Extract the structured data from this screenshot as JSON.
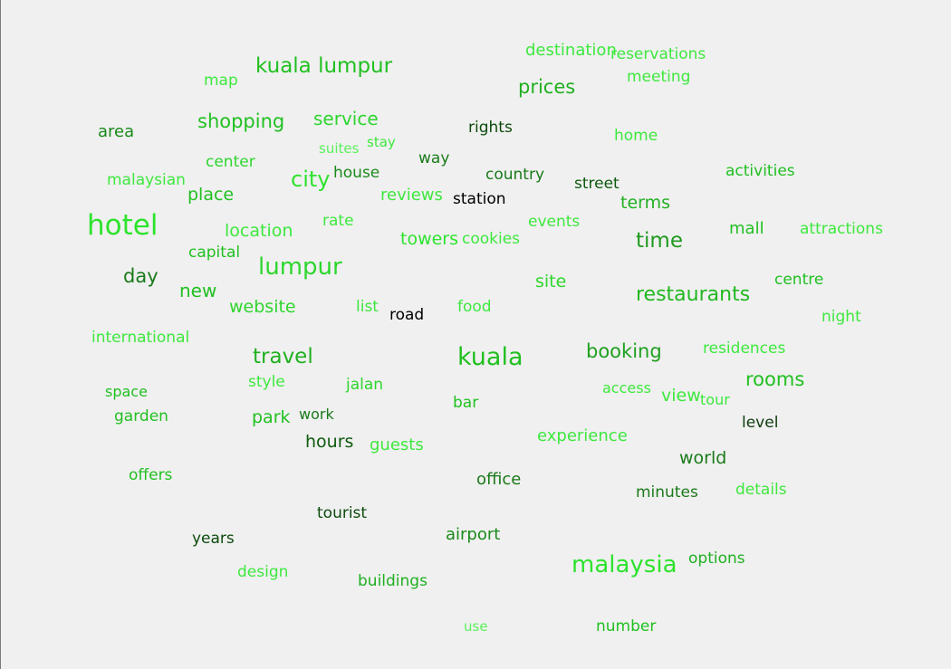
{
  "word_cloud": {
    "words": [
      {
        "text": "hotel",
        "color": "#2ee32e"
      },
      {
        "text": "kuala lumpur",
        "color": "#21c021"
      },
      {
        "text": "lumpur",
        "color": "#2ed62e"
      },
      {
        "text": "kuala",
        "color": "#21c021"
      },
      {
        "text": "malaysia",
        "color": "#2ee32e"
      },
      {
        "text": "restaurants",
        "color": "#21b821"
      },
      {
        "text": "travel",
        "color": "#21b021"
      },
      {
        "text": "city",
        "color": "#2ee32e"
      },
      {
        "text": "time",
        "color": "#1f9a1f"
      },
      {
        "text": "prices",
        "color": "#21b021"
      },
      {
        "text": "shopping",
        "color": "#21c021"
      },
      {
        "text": "rooms",
        "color": "#21c021"
      },
      {
        "text": "booking",
        "color": "#1fa01f"
      },
      {
        "text": "service",
        "color": "#2ed62e"
      },
      {
        "text": "location",
        "color": "#3ee83e"
      },
      {
        "text": "day",
        "color": "#1a7a1a"
      },
      {
        "text": "website",
        "color": "#2ed62e"
      },
      {
        "text": "towers",
        "color": "#2ee32e"
      },
      {
        "text": "place",
        "color": "#21c021"
      },
      {
        "text": "new",
        "color": "#21c021"
      },
      {
        "text": "terms",
        "color": "#21b021"
      },
      {
        "text": "reviews",
        "color": "#3ee83e"
      },
      {
        "text": "hours",
        "color": "#0d5a0d"
      },
      {
        "text": "guests",
        "color": "#3ee83e"
      },
      {
        "text": "view",
        "color": "#3ee83e"
      },
      {
        "text": "site",
        "color": "#2ed62e"
      },
      {
        "text": "park",
        "color": "#21c021"
      },
      {
        "text": "area",
        "color": "#1a8a1a"
      },
      {
        "text": "destination",
        "color": "#3ee83e"
      },
      {
        "text": "reservations",
        "color": "#3ee83e"
      },
      {
        "text": "meeting",
        "color": "#3ee83e"
      },
      {
        "text": "map",
        "color": "#3ee83e"
      },
      {
        "text": "rights",
        "color": "#0d4a0d"
      },
      {
        "text": "home",
        "color": "#3ee83e"
      },
      {
        "text": "suites",
        "color": "#5cf05c"
      },
      {
        "text": "stay",
        "color": "#3ee83e"
      },
      {
        "text": "center",
        "color": "#2ed62e"
      },
      {
        "text": "house",
        "color": "#1a8a1a"
      },
      {
        "text": "way",
        "color": "#1a7a1a"
      },
      {
        "text": "country",
        "color": "#1a7a1a"
      },
      {
        "text": "street",
        "color": "#0d5a0d"
      },
      {
        "text": "activities",
        "color": "#21c021"
      },
      {
        "text": "malaysian",
        "color": "#3ee83e"
      },
      {
        "text": "station",
        "color": "#000000"
      },
      {
        "text": "rate",
        "color": "#3ee83e"
      },
      {
        "text": "events",
        "color": "#3ee83e"
      },
      {
        "text": "mall",
        "color": "#21c021"
      },
      {
        "text": "attractions",
        "color": "#3ee83e"
      },
      {
        "text": "capital",
        "color": "#21c021"
      },
      {
        "text": "cookies",
        "color": "#3ee83e"
      },
      {
        "text": "centre",
        "color": "#21c021"
      },
      {
        "text": "list",
        "color": "#3ee83e"
      },
      {
        "text": "road",
        "color": "#000000"
      },
      {
        "text": "food",
        "color": "#3ee83e"
      },
      {
        "text": "night",
        "color": "#3ee83e"
      },
      {
        "text": "international",
        "color": "#3ee83e"
      },
      {
        "text": "residences",
        "color": "#3ee83e"
      },
      {
        "text": "style",
        "color": "#3ee83e"
      },
      {
        "text": "jalan",
        "color": "#2ed62e"
      },
      {
        "text": "space",
        "color": "#21c021"
      },
      {
        "text": "access",
        "color": "#3ee83e"
      },
      {
        "text": "tour",
        "color": "#3ee83e"
      },
      {
        "text": "bar",
        "color": "#21c021"
      },
      {
        "text": "garden",
        "color": "#21c021"
      },
      {
        "text": "work",
        "color": "#1a7a1a"
      },
      {
        "text": "level",
        "color": "#0d3a0d"
      },
      {
        "text": "experience",
        "color": "#3ee83e"
      },
      {
        "text": "world",
        "color": "#1a7a1a"
      },
      {
        "text": "offers",
        "color": "#21c021"
      },
      {
        "text": "office",
        "color": "#1a7a1a"
      },
      {
        "text": "minutes",
        "color": "#1a7a1a"
      },
      {
        "text": "details",
        "color": "#3ee83e"
      },
      {
        "text": "tourist",
        "color": "#0d4a0d"
      },
      {
        "text": "years",
        "color": "#0d4a0d"
      },
      {
        "text": "airport",
        "color": "#1a8a1a"
      },
      {
        "text": "options",
        "color": "#21b021"
      },
      {
        "text": "design",
        "color": "#3ee83e"
      },
      {
        "text": "buildings",
        "color": "#21b021"
      },
      {
        "text": "use",
        "color": "#5cf05c"
      },
      {
        "text": "number",
        "color": "#21c021"
      }
    ]
  }
}
